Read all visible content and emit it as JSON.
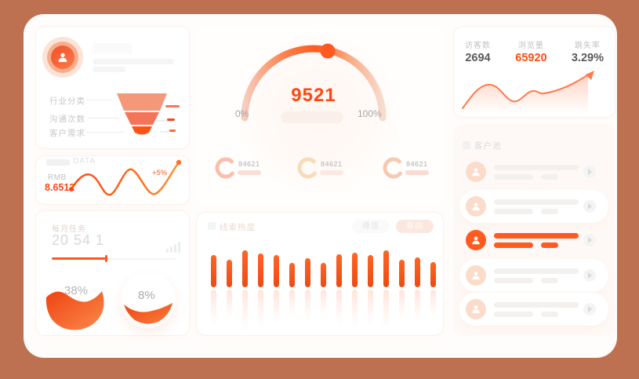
{
  "theme": {
    "background": "#BE7150",
    "primary": "#FF5A1F",
    "value_red": "#FF4715",
    "card": "#FFFFFF"
  },
  "profile_card": {
    "funnel_labels": [
      "行业分类",
      "沟通次数",
      "客户需求"
    ],
    "chart_data": {
      "type": "funnel",
      "stages": [
        "行业分类",
        "沟通次数",
        "客户需求"
      ],
      "colors": [
        "#F49879",
        "#F4745A",
        "#FF5217"
      ]
    }
  },
  "data_card": {
    "title": "DATA",
    "currency": "RMB",
    "value": "8.6512",
    "change": "+5%"
  },
  "monthly_card": {
    "title": "每月任务",
    "value": "20 54 1",
    "gauge1_percent": "38%",
    "gauge2_percent": "8%"
  },
  "gauge_card": {
    "value": "9521",
    "min_label": "0%",
    "max_label": "100%",
    "rings": [
      {
        "value": "84621",
        "color": "#F8BFAC",
        "bar_color": "#FBDED3"
      },
      {
        "value": "84621",
        "color": "#F7DCBA",
        "bar_color": "#FCE8E0"
      },
      {
        "value": "84621",
        "color": "#F6C9B2",
        "bar_color": "#FBDAD0"
      }
    ]
  },
  "bars_card": {
    "title": "线索热度",
    "buttons": {
      "peak": "峰值",
      "intent": "意向"
    },
    "chart_data": {
      "type": "bar",
      "title": "线索热度",
      "values": [
        41,
        35,
        47,
        43,
        41,
        31,
        37,
        31,
        42,
        44,
        41,
        47,
        35,
        38,
        32
      ],
      "note": "15 bars, relative heights estimated from pixels; mirrored faded reflection below baseline; no axis labels shown",
      "bar_color": "#FF5A1F"
    }
  },
  "stats_card": {
    "stats": [
      {
        "label": "访客数",
        "value": "2694",
        "color": "#5A5A5A"
      },
      {
        "label": "浏览量",
        "value": "65920",
        "color": "#FF4D12"
      },
      {
        "label": "跳失率",
        "value": "3.29%",
        "color": "#5A5A5A"
      }
    ],
    "chart_data": {
      "type": "area",
      "note": "decorative rising trend line with arrow head, no axis labels",
      "line_color": "#FF7A4D"
    }
  },
  "pool_card": {
    "title": "客户池",
    "items": [
      {
        "state": "normal",
        "pill": false
      },
      {
        "state": "normal",
        "pill": true
      },
      {
        "state": "highlighted",
        "pill": false
      },
      {
        "state": "normal",
        "pill": true
      },
      {
        "state": "normal",
        "pill": true
      }
    ]
  }
}
